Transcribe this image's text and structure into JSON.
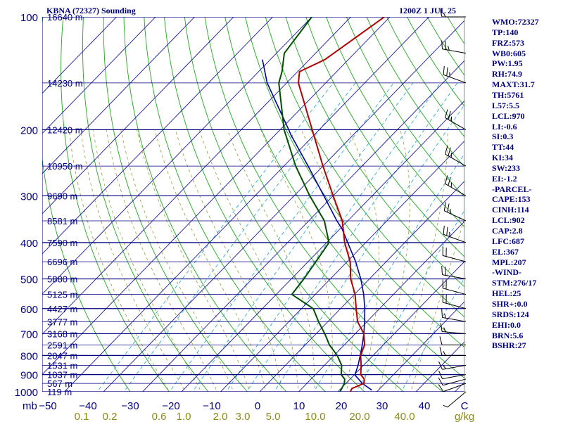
{
  "header": {
    "station": "KBNA (72327) Sounding",
    "time": "1200Z  1 JUL 25"
  },
  "chart_data": {
    "type": "skew-t",
    "pressure_labels": [
      "100",
      "200",
      "300",
      "400",
      "500",
      "600",
      "700",
      "800",
      "900",
      "1000"
    ],
    "height_labels": [
      {
        "p": 100,
        "label": "16640 m"
      },
      {
        "p": 150,
        "label": "14230 m"
      },
      {
        "p": 200,
        "label": "12420 m"
      },
      {
        "p": 250,
        "label": "10950 m"
      },
      {
        "p": 300,
        "label": "9690 m"
      },
      {
        "p": 350,
        "label": "8581 m"
      },
      {
        "p": 400,
        "label": "7590 m"
      },
      {
        "p": 450,
        "label": "6696 m"
      },
      {
        "p": 500,
        "label": "5880 m"
      },
      {
        "p": 550,
        "label": "5125 m"
      },
      {
        "p": 600,
        "label": "4427 m"
      },
      {
        "p": 650,
        "label": "3777 m"
      },
      {
        "p": 700,
        "label": "3168 m"
      },
      {
        "p": 750,
        "label": "2591 m"
      },
      {
        "p": 800,
        "label": "2047 m"
      },
      {
        "p": 850,
        "label": "1531 m"
      },
      {
        "p": 900,
        "label": "1037 m"
      },
      {
        "p": 950,
        "label": "567 m"
      },
      {
        "p": 1000,
        "label": "119 m"
      }
    ],
    "temperature_ticks": [
      "−50",
      "−40",
      "−30",
      "−20",
      "−10",
      "0",
      "10",
      "20",
      "30",
      "40",
      "C"
    ],
    "mixing_ratio_ticks": [
      "0.1",
      "0.2",
      "0.6",
      "1.0",
      "2.0",
      "3.0",
      "5.0",
      "10.0",
      "20.0",
      "40.0",
      "g/kg"
    ],
    "mb_unit": "mb",
    "temperature": [
      {
        "p": 1000,
        "t": 23.2
      },
      {
        "p": 980,
        "t": 22.8
      },
      {
        "p": 950,
        "t": 24.6
      },
      {
        "p": 925,
        "t": 23.6
      },
      {
        "p": 900,
        "t": 21.6
      },
      {
        "p": 850,
        "t": 19.4
      },
      {
        "p": 800,
        "t": 16.8
      },
      {
        "p": 750,
        "t": 15.2
      },
      {
        "p": 700,
        "t": 12.2
      },
      {
        "p": 650,
        "t": 7.6
      },
      {
        "p": 600,
        "t": 4.0
      },
      {
        "p": 550,
        "t": 0.2
      },
      {
        "p": 500,
        "t": -4.8
      },
      {
        "p": 450,
        "t": -9.2
      },
      {
        "p": 400,
        "t": -15.4
      },
      {
        "p": 350,
        "t": -21.4
      },
      {
        "p": 300,
        "t": -30.0
      },
      {
        "p": 250,
        "t": -40.0
      },
      {
        "p": 200,
        "t": -51.8
      },
      {
        "p": 150,
        "t": -67.0
      },
      {
        "p": 140,
        "t": -69.5
      },
      {
        "p": 130,
        "t": -66.0
      },
      {
        "p": 100,
        "t": -61.4
      }
    ],
    "dewpoint": [
      {
        "p": 1000,
        "t": 20.6
      },
      {
        "p": 950,
        "t": 19.6
      },
      {
        "p": 925,
        "t": 18.6
      },
      {
        "p": 900,
        "t": 16.6
      },
      {
        "p": 850,
        "t": 14.4
      },
      {
        "p": 800,
        "t": 10.8
      },
      {
        "p": 750,
        "t": 6.2
      },
      {
        "p": 700,
        "t": 2.2
      },
      {
        "p": 650,
        "t": -2.4
      },
      {
        "p": 600,
        "t": -7.0
      },
      {
        "p": 550,
        "t": -16.0
      },
      {
        "p": 500,
        "t": -16.8
      },
      {
        "p": 450,
        "t": -18.0
      },
      {
        "p": 400,
        "t": -19.4
      },
      {
        "p": 350,
        "t": -26.0
      },
      {
        "p": 300,
        "t": -36.0
      },
      {
        "p": 250,
        "t": -47.0
      },
      {
        "p": 200,
        "t": -59.0
      },
      {
        "p": 150,
        "t": -72.0
      },
      {
        "p": 140,
        "t": -74.0
      },
      {
        "p": 125,
        "t": -78.0
      },
      {
        "p": 100,
        "t": -80.0
      }
    ],
    "parcel": [
      {
        "p": 990,
        "t": 28.3
      },
      {
        "p": 950,
        "t": 24.2
      },
      {
        "p": 902,
        "t": 20.2
      },
      {
        "p": 850,
        "t": 18.6
      },
      {
        "p": 800,
        "t": 16.7
      },
      {
        "p": 750,
        "t": 14.6
      },
      {
        "p": 700,
        "t": 12.2
      },
      {
        "p": 650,
        "t": 9.4
      },
      {
        "p": 600,
        "t": 6.2
      },
      {
        "p": 550,
        "t": 2.4
      },
      {
        "p": 500,
        "t": -2.2
      },
      {
        "p": 450,
        "t": -7.8
      },
      {
        "p": 400,
        "t": -14.6
      },
      {
        "p": 367,
        "t": -19.6
      },
      {
        "p": 350,
        "t": -22.8
      },
      {
        "p": 300,
        "t": -32.4
      },
      {
        "p": 250,
        "t": -43.8
      },
      {
        "p": 207,
        "t": -55.8
      },
      {
        "p": 200,
        "t": -57.8
      },
      {
        "p": 150,
        "t": -75.0
      },
      {
        "p": 130,
        "t": -82.0
      }
    ],
    "wind_barbs": [
      {
        "p": 1000,
        "dir": 230,
        "spd": 5
      },
      {
        "p": 950,
        "dir": 250,
        "spd": 10
      },
      {
        "p": 925,
        "dir": 255,
        "spd": 10
      },
      {
        "p": 900,
        "dir": 260,
        "spd": 10
      },
      {
        "p": 850,
        "dir": 260,
        "spd": 15
      },
      {
        "p": 800,
        "dir": 270,
        "spd": 15
      },
      {
        "p": 750,
        "dir": 270,
        "spd": 10
      },
      {
        "p": 700,
        "dir": 275,
        "spd": 15
      },
      {
        "p": 650,
        "dir": 280,
        "spd": 15
      },
      {
        "p": 600,
        "dir": 285,
        "spd": 20
      },
      {
        "p": 550,
        "dir": 285,
        "spd": 20
      },
      {
        "p": 500,
        "dir": 280,
        "spd": 20
      },
      {
        "p": 450,
        "dir": 285,
        "spd": 20
      },
      {
        "p": 400,
        "dir": 290,
        "spd": 25
      },
      {
        "p": 350,
        "dir": 295,
        "spd": 25
      },
      {
        "p": 300,
        "dir": 300,
        "spd": 25
      },
      {
        "p": 250,
        "dir": 300,
        "spd": 25
      },
      {
        "p": 200,
        "dir": 300,
        "spd": 25
      },
      {
        "p": 150,
        "dir": 290,
        "spd": 25
      },
      {
        "p": 125,
        "dir": 280,
        "spd": 25
      },
      {
        "p": 100,
        "dir": 270,
        "spd": 15
      }
    ],
    "grid": true
  },
  "indices": [
    "WMO:72327",
    "TP:140",
    "FRZ:573",
    "WB0:605",
    "PW:1.95",
    "RH:74.9",
    "MAXT:31.7",
    "TH:5761",
    "L57:5.5",
    "LCL:970",
    "LI:-0.6",
    "SI:0.3",
    "TT:44",
    "KI:34",
    "SW:233",
    "EI:-1.2",
    "-PARCEL-",
    "CAPE:153",
    "CINH:114",
    "LCL:902",
    "CAP:2.8",
    "LFC:687",
    "EL:367",
    "MPL:207",
    "-WIND-",
    "STM:276/17",
    "HEL:25",
    "SHR+:0.0",
    "SRDS:124",
    "EHI:0.0",
    "BRN:5.6",
    "BSHR:27"
  ],
  "colors": {
    "isobar": "#000080",
    "isotherm": "#1a1aa6",
    "dry_adiabat": "#22a622",
    "moist_adiabat": "#9a9a40",
    "mixing_ratio": "#33aadd",
    "temperature": "#b00000",
    "dewpoint": "#005000",
    "parcel": "#0000a0",
    "text": "#000080",
    "mixing_text": "#8a8a1a"
  }
}
